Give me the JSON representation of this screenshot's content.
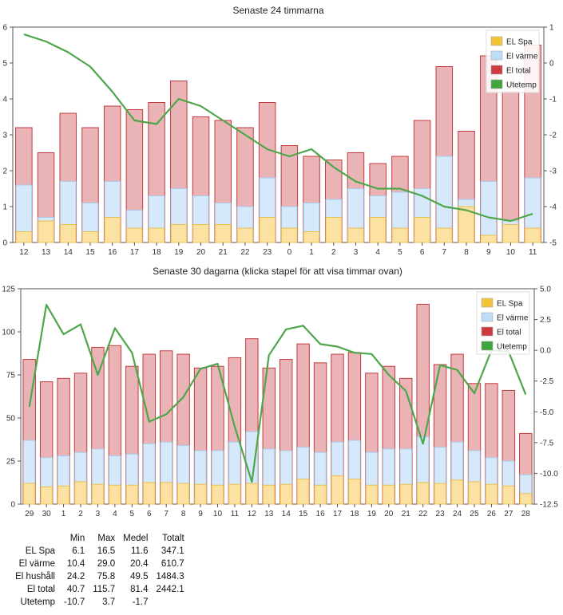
{
  "chart_data": [
    {
      "type": "bar",
      "title": "Senaste 24 timmarna",
      "stacked": true,
      "categories": [
        "12",
        "13",
        "14",
        "15",
        "16",
        "17",
        "18",
        "19",
        "20",
        "21",
        "22",
        "23",
        "0",
        "1",
        "2",
        "3",
        "4",
        "5",
        "6",
        "7",
        "8",
        "9",
        "10",
        "11"
      ],
      "ylim": [
        0,
        6
      ],
      "yticks": [
        0,
        1,
        2,
        3,
        4,
        5,
        6
      ],
      "y2lim": [
        -5,
        1
      ],
      "y2ticks": [
        -5,
        -4,
        -3,
        -2,
        -1,
        0,
        1
      ],
      "series": [
        {
          "name": "EL Spa",
          "type": "bar",
          "values": [
            0.3,
            0.6,
            0.5,
            0.3,
            0.7,
            0.4,
            0.4,
            0.5,
            0.5,
            0.5,
            0.4,
            0.7,
            0.4,
            0.3,
            0.7,
            0.4,
            0.7,
            0.4,
            0.7,
            0.4,
            1.0,
            0.2,
            0.5,
            0.4
          ]
        },
        {
          "name": "El värme",
          "type": "bar",
          "values": [
            1.6,
            0.7,
            1.7,
            1.1,
            1.7,
            0.9,
            1.3,
            1.5,
            1.3,
            1.1,
            1.0,
            1.8,
            1.0,
            1.1,
            1.2,
            1.5,
            1.3,
            1.4,
            1.5,
            2.4,
            1.2,
            1.7,
            0.6,
            1.8
          ]
        },
        {
          "name": "El total",
          "type": "bar",
          "values": [
            3.2,
            2.5,
            3.6,
            3.2,
            3.8,
            3.7,
            3.9,
            4.5,
            3.5,
            3.4,
            3.2,
            3.9,
            2.7,
            2.4,
            2.3,
            2.5,
            2.2,
            2.4,
            3.4,
            4.9,
            3.1,
            5.2,
            4.2,
            5.5
          ]
        },
        {
          "name": "Utetemp",
          "type": "line",
          "axis": "right",
          "values": [
            0.8,
            0.6,
            0.3,
            -0.1,
            -0.8,
            -1.6,
            -1.7,
            -1.0,
            -1.2,
            -1.6,
            -2.0,
            -2.4,
            -2.6,
            -2.4,
            -2.9,
            -3.3,
            -3.5,
            -3.5,
            -3.7,
            -4.0,
            -4.1,
            -4.3,
            -4.4,
            -4.2
          ]
        }
      ],
      "legend": "top-right"
    },
    {
      "type": "bar",
      "title": "Senaste 30 dagarna (klicka stapel för att visa timmar ovan)",
      "stacked": true,
      "categories": [
        "29",
        "30",
        "1",
        "2",
        "3",
        "4",
        "5",
        "6",
        "7",
        "8",
        "9",
        "10",
        "11",
        "12",
        "13",
        "14",
        "15",
        "16",
        "17",
        "18",
        "19",
        "20",
        "21",
        "22",
        "23",
        "24",
        "25",
        "26",
        "27",
        "28"
      ],
      "ylim": [
        0,
        125
      ],
      "yticks": [
        0,
        25,
        50,
        75,
        100,
        125
      ],
      "y2lim": [
        -12.5,
        5.0
      ],
      "y2ticks": [
        -12.5,
        -10.0,
        -7.5,
        -5.0,
        -2.5,
        0.0,
        2.5,
        5.0
      ],
      "series": [
        {
          "name": "EL Spa",
          "type": "bar",
          "values": [
            12,
            10,
            10.5,
            13,
            11.5,
            11,
            11,
            12.5,
            12.5,
            12,
            11.5,
            11,
            11.5,
            12,
            11,
            11.5,
            14.5,
            11,
            16.5,
            14.5,
            11,
            11,
            11.5,
            12.5,
            12,
            14,
            13,
            11.5,
            10.5,
            6.1
          ]
        },
        {
          "name": "El värme",
          "type": "bar",
          "values": [
            37,
            27,
            28,
            30,
            32,
            28,
            29,
            35,
            36,
            34,
            31,
            31,
            36,
            42,
            32,
            31,
            33,
            30,
            36,
            37,
            30,
            32,
            32,
            39,
            33,
            36,
            31,
            27,
            25,
            17
          ]
        },
        {
          "name": "El total",
          "type": "bar",
          "values": [
            84,
            71,
            73,
            76,
            91,
            92,
            80,
            87,
            89,
            87,
            79,
            80,
            85,
            96,
            79,
            84,
            93,
            82,
            87,
            88,
            76,
            80,
            73,
            116,
            81,
            87,
            70,
            70,
            66,
            41
          ]
        },
        {
          "name": "Utetemp",
          "type": "line",
          "axis": "right",
          "values": [
            -4.6,
            3.7,
            1.3,
            2.1,
            -2.0,
            1.8,
            -0.2,
            -5.8,
            -5.2,
            -3.8,
            -1.5,
            -1.1,
            -6.2,
            -10.7,
            -0.4,
            1.7,
            2.0,
            0.5,
            0.3,
            -0.2,
            -0.3,
            -2.0,
            -3.3,
            -7.6,
            -1.2,
            -1.6,
            -3.5,
            0.0,
            -0.1,
            -3.6
          ]
        }
      ],
      "legend": "top-right"
    }
  ],
  "colors": {
    "spa_fill": "#fbe2a2",
    "spa_stroke": "#e8c050",
    "varme_fill": "#d5e9fa",
    "varme_stroke": "#a9cdee",
    "total_fill": "#eab4b7",
    "total_stroke": "#c23b3f",
    "temp_line": "#4ea64a",
    "legend_spa": "#f2c43a",
    "legend_varme": "#bcdcf7",
    "legend_total": "#cf3a3f",
    "legend_temp": "#3ea63a"
  },
  "stats": {
    "headers": [
      "",
      "Min",
      "Max",
      "Medel",
      "Totalt"
    ],
    "rows": [
      {
        "label": "EL Spa",
        "min": "6.1",
        "max": "16.5",
        "medel": "11.6",
        "totalt": "347.1"
      },
      {
        "label": "El värme",
        "min": "10.4",
        "max": "29.0",
        "medel": "20.4",
        "totalt": "610.7"
      },
      {
        "label": "El hushåll",
        "min": "24.2",
        "max": "75.8",
        "medel": "49.5",
        "totalt": "1484.3"
      },
      {
        "label": "El total",
        "min": "40.7",
        "max": "115.7",
        "medel": "81.4",
        "totalt": "2442.1"
      },
      {
        "label": "Utetemp",
        "min": "-10.7",
        "max": "3.7",
        "medel": "-1.7",
        "totalt": ""
      }
    ]
  }
}
